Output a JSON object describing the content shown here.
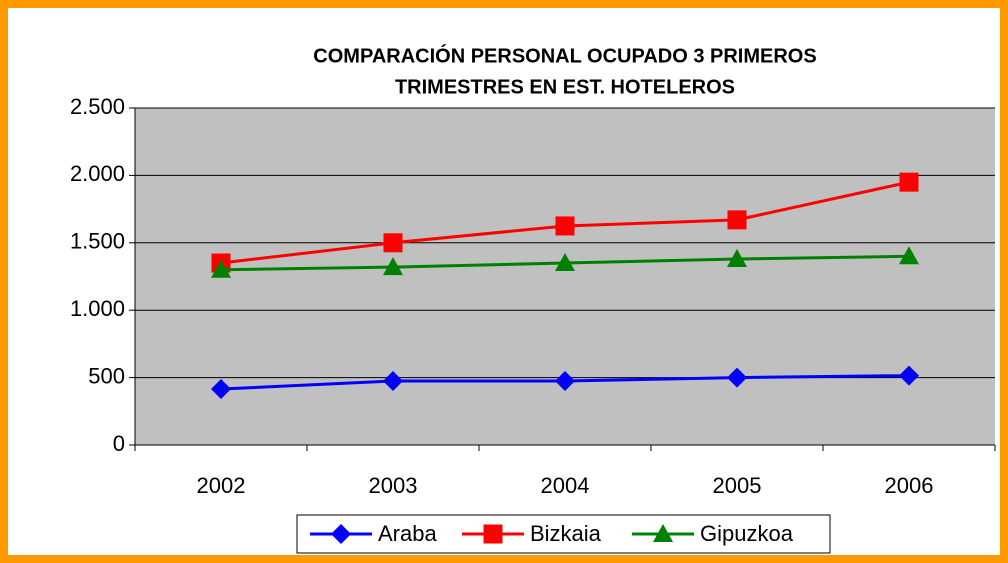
{
  "chart_data": {
    "type": "line",
    "title": [
      "COMPARACIÓN PERSONAL OCUPADO 3 PRIMEROS",
      "TRIMESTRES EN EST. HOTELEROS"
    ],
    "categories": [
      "2002",
      "2003",
      "2004",
      "2005",
      "2006"
    ],
    "series": [
      {
        "name": "Araba",
        "color": "#0000ff",
        "marker": "diamond",
        "values": [
          415,
          475,
          475,
          500,
          515
        ]
      },
      {
        "name": "Bizkaia",
        "color": "#ff0000",
        "marker": "square",
        "values": [
          1350,
          1500,
          1625,
          1670,
          1950
        ]
      },
      {
        "name": "Gipuzkoa",
        "color": "#008000",
        "marker": "triangle",
        "values": [
          1300,
          1320,
          1350,
          1380,
          1400
        ]
      }
    ],
    "ylim": [
      0,
      2500
    ],
    "yticks": [
      0,
      500,
      {
        "value": 1000,
        "label": "1.000"
      },
      {
        "value": 1500,
        "label": "1.500"
      },
      {
        "value": 2000,
        "label": "2.000"
      },
      {
        "value": 2500,
        "label": "2.500"
      }
    ],
    "grid": true,
    "legend": "bottom"
  }
}
